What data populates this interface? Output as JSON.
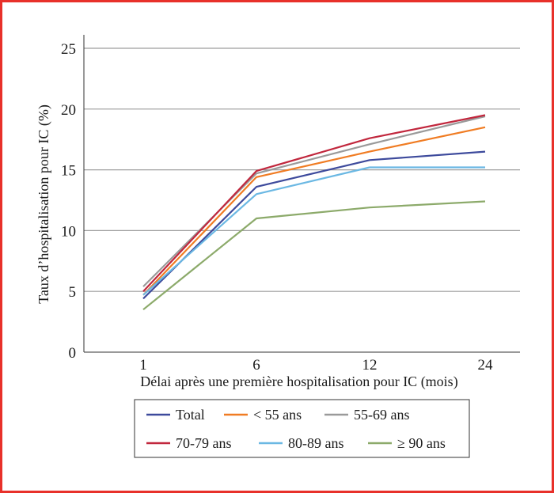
{
  "chart_data": {
    "type": "line",
    "title": "",
    "ylabel": "Taux d’hospitalisation pour IC (%)",
    "xlabel": "Délai après une première hospitalisation pour IC (mois)",
    "categories": [
      "1",
      "6",
      "12",
      "24"
    ],
    "ylim": [
      0,
      25
    ],
    "yticks": [
      0,
      5,
      10,
      15,
      20,
      25
    ],
    "grid": true,
    "legend_position": "bottom",
    "series": [
      {
        "name": "Total",
        "color": "#3d4a9c",
        "values": [
          4.4,
          13.6,
          15.8,
          16.5
        ]
      },
      {
        "name": "< 55 ans",
        "color": "#f07c23",
        "values": [
          4.7,
          14.4,
          16.5,
          18.5
        ]
      },
      {
        "name": "55-69 ans",
        "color": "#9a9a9a",
        "values": [
          5.4,
          14.7,
          17.1,
          19.4
        ]
      },
      {
        "name": "70-79 ans",
        "color": "#c1273d",
        "values": [
          5.0,
          14.9,
          17.6,
          19.5
        ]
      },
      {
        "name": "80-89 ans",
        "color": "#6bb8e3",
        "values": [
          4.7,
          13.0,
          15.2,
          15.2
        ]
      },
      {
        "name": "≥ 90 ans",
        "color": "#8caa6a",
        "values": [
          3.5,
          11.0,
          11.9,
          12.4
        ]
      }
    ]
  }
}
